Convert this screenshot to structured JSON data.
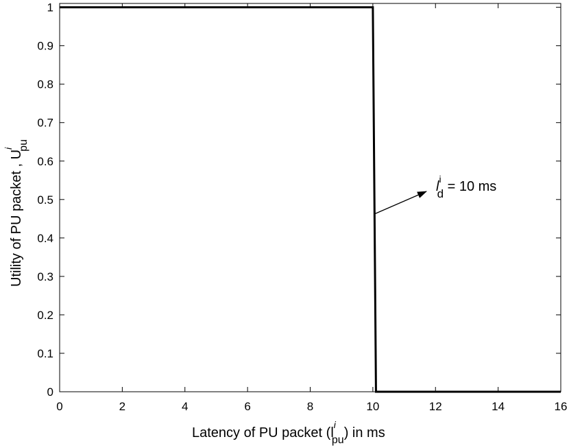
{
  "chart_data": {
    "type": "line",
    "x_label": {
      "main": "Latency of PU packet  (l",
      "sup": "i",
      "sub": "pu",
      "tail": ") in ms"
    },
    "y_label": {
      "main": "Utility of PU packet , U",
      "sup": "i",
      "sub": "pu"
    },
    "annotation": {
      "main": "l",
      "sup": "i",
      "sub": "d",
      "tail": " = 10 ms"
    },
    "x": [
      0,
      10,
      10.1,
      16
    ],
    "series": [
      {
        "color": "#000000",
        "values": [
          1,
          1,
          0,
          0
        ]
      }
    ],
    "xlim": [
      0,
      16
    ],
    "ylim": [
      0,
      1.01
    ],
    "xticks": [
      0,
      2,
      4,
      6,
      8,
      10,
      12,
      14,
      16
    ],
    "yticks": [
      0,
      0.1,
      0.2,
      0.3,
      0.4,
      0.5,
      0.6,
      0.7,
      0.8,
      0.9,
      1
    ],
    "grid": false
  }
}
